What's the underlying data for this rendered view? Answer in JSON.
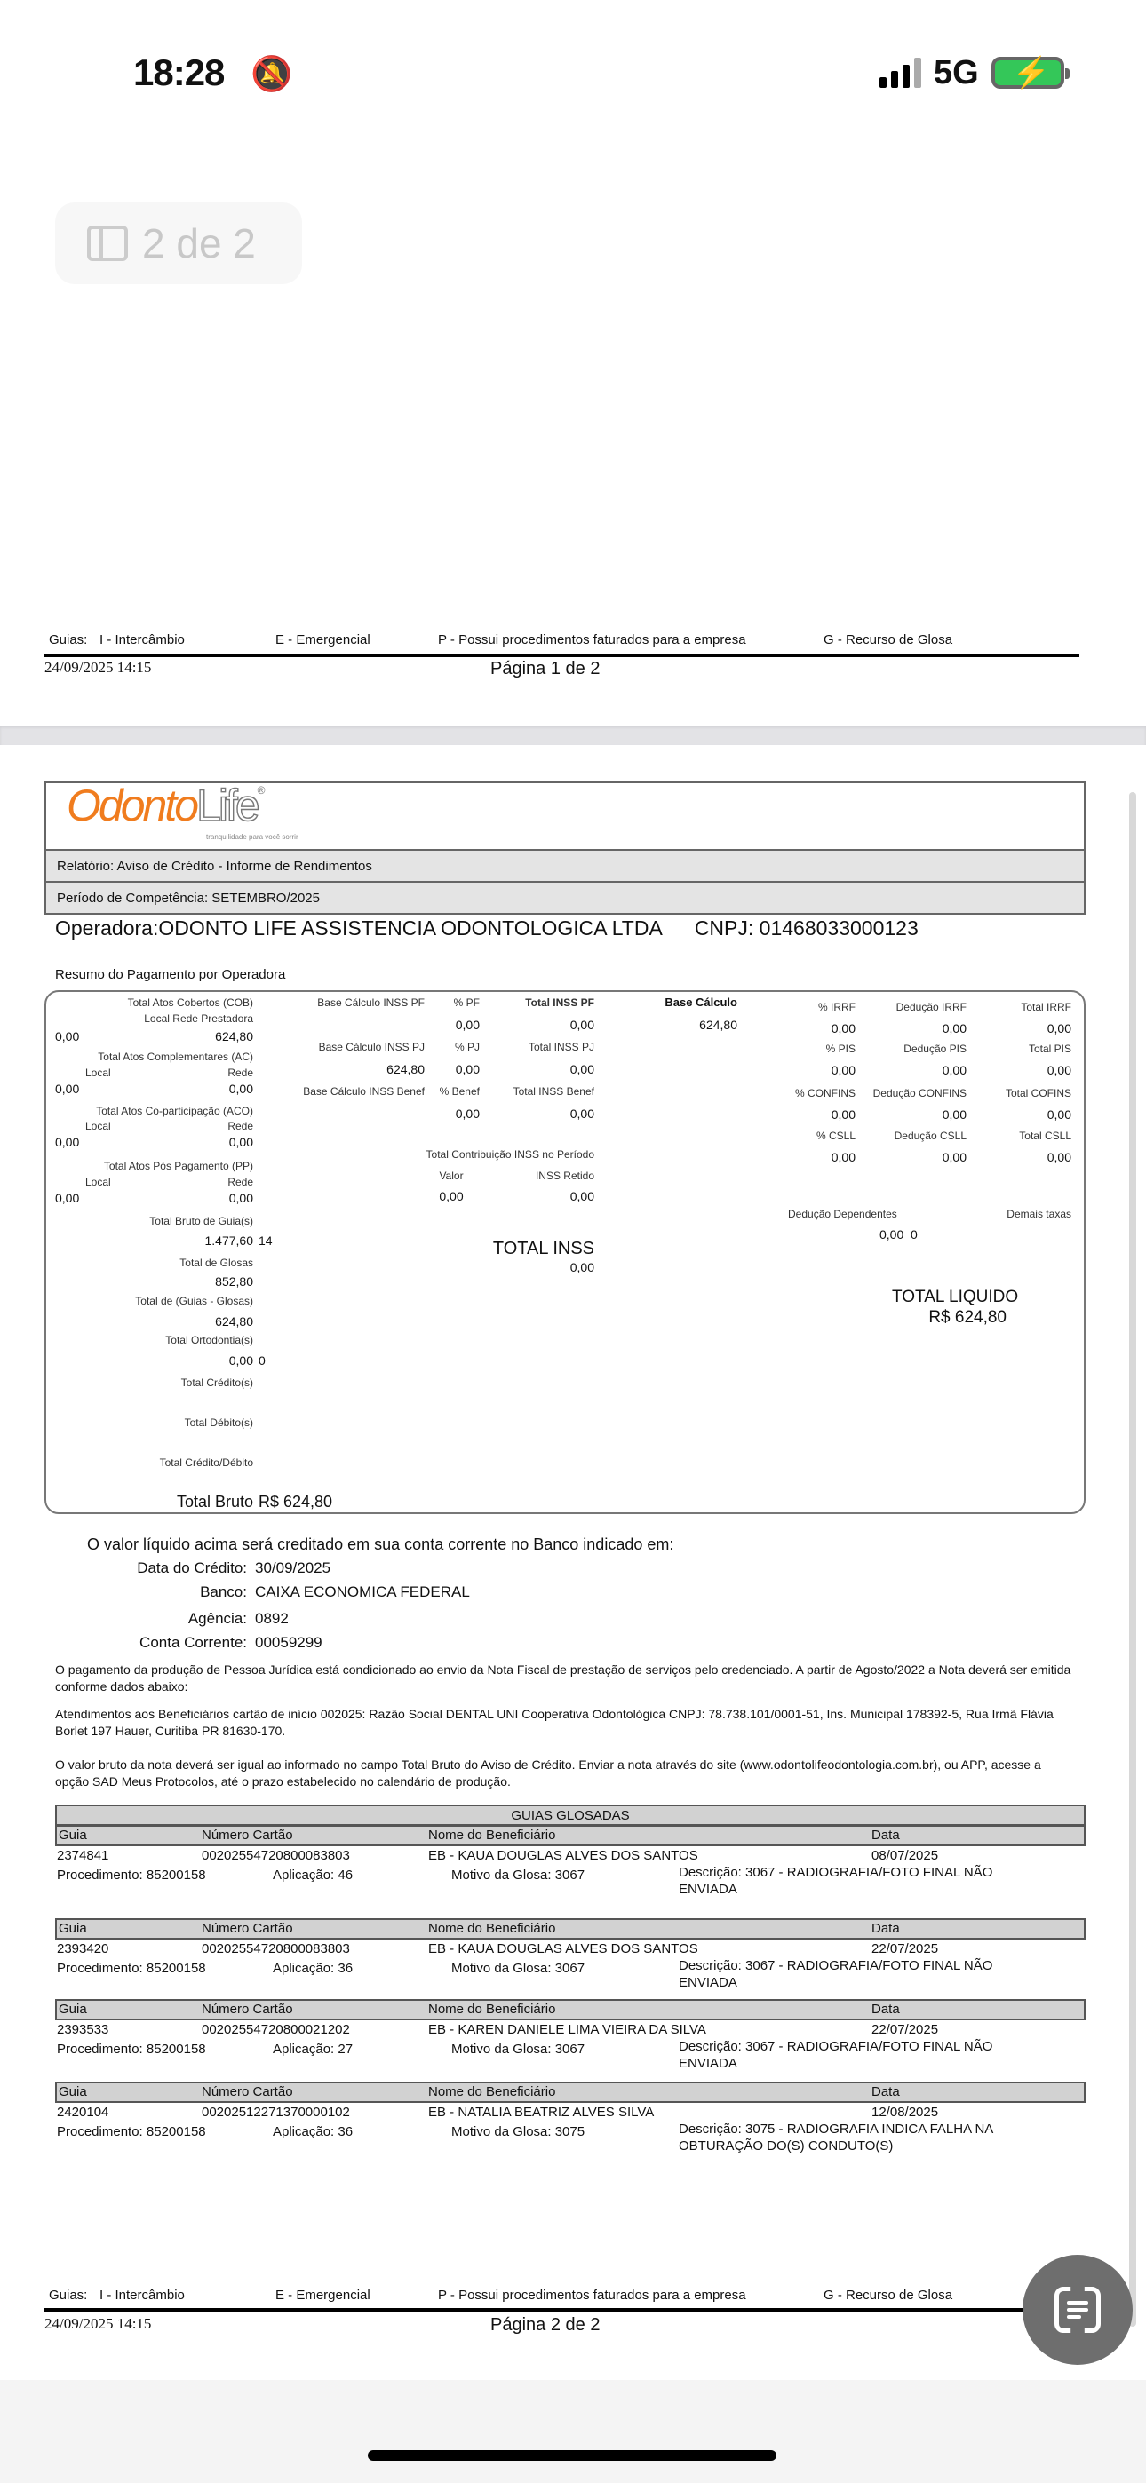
{
  "status": {
    "time": "18:28",
    "network": "5G",
    "silent_icon": "bell-slash-icon"
  },
  "viewer": {
    "page_indicator": "2 de 2",
    "fab_icon": "text-scan-icon"
  },
  "page1_footer": {
    "legend": [
      "Guias:",
      "I - Intercâmbio",
      "E - Emergencial",
      "P - Possui procedimentos faturados para a empresa",
      "G - Recurso de Glosa"
    ],
    "printed": "24/09/2025 14:15",
    "page": "Página 1 de 2"
  },
  "header": {
    "logo_a": "Odonto",
    "logo_b": "Life",
    "logo_mark": "®",
    "tagline": "tranquilidade para você sorrir",
    "relatorio": "Relatório:  Aviso de Crédito - Informe de Rendimentos",
    "periodo": "Período de Competência:  SETEMBRO/2025",
    "operadora": "Operadora:ODONTO LIFE ASSISTENCIA ODONTOLOGICA LTDA",
    "cnpj": "CNPJ: 01468033000123",
    "resumo": "Resumo do Pagamento por Operadora"
  },
  "summary": {
    "cob": {
      "label": "Total Atos Cobertos (COB)",
      "sub": "Local Rede Prestadora",
      "local": "0,00",
      "rede": "624,80"
    },
    "ac": {
      "label": "Total Atos Complementares (AC)",
      "local_label": "Local",
      "rede_label": "Rede",
      "local": "0,00",
      "rede": "0,00"
    },
    "aco": {
      "label": "Total Atos Co-participação (ACO)",
      "local_label": "Local",
      "rede_label": "Rede",
      "local": "0,00",
      "rede": "0,00"
    },
    "pp": {
      "label": "Total Atos Pós Pagamento (PP)",
      "local_label": "Local",
      "rede_label": "Rede",
      "local": "0,00",
      "rede": "0,00"
    },
    "bruto_guias": {
      "label": "Total Bruto de Guia(s)",
      "value": "1.477,60",
      "count": "14"
    },
    "glosas": {
      "label": "Total de Glosas",
      "value": "852,80"
    },
    "guias_glosas": {
      "label": "Total de (Guias - Glosas)",
      "value": "624,80"
    },
    "ortodontia": {
      "label": "Total Ortodontia(s)",
      "value": "0,00",
      "count": "0"
    },
    "credito": {
      "label": "Total Crédito(s)"
    },
    "debito": {
      "label": "Total Débito(s)"
    },
    "cred_deb": {
      "label": "Total Crédito/Débito"
    },
    "total_bruto": {
      "label": "Total Bruto",
      "value": "R$ 624,80"
    },
    "inss": {
      "pf": {
        "base_label": "Base Cálculo INSS PF",
        "pct_label": "% PF",
        "total_label": "Total INSS PF",
        "base": "",
        "pct": "0,00",
        "total": "0,00"
      },
      "pj": {
        "base_label": "Base Cálculo INSS PJ",
        "pct_label": "% PJ",
        "total_label": "Total INSS PJ",
        "base": "624,80",
        "pct": "0,00",
        "total": "0,00"
      },
      "benef": {
        "base_label": "Base Cálculo INSS Benef",
        "pct_label": "% Benef",
        "total_label": "Total INSS Benef",
        "base": "",
        "pct": "0,00",
        "total": "0,00"
      },
      "periodo_label": "Total Contribuição INSS no Período",
      "valor_label": "Valor",
      "retido_label": "INSS Retido",
      "valor": "0,00",
      "retido": "0,00",
      "total_label": "TOTAL INSS",
      "total": "0,00"
    },
    "taxes": {
      "base_label": "Base Cálculo",
      "base": "624,80",
      "rows": [
        {
          "pct_label": "% IRRF",
          "ded_label": "Dedução IRRF",
          "total_label": "Total IRRF",
          "pct": "0,00",
          "ded": "0,00",
          "total": "0,00"
        },
        {
          "pct_label": "% PIS",
          "ded_label": "Dedução PIS",
          "total_label": "Total PIS",
          "pct": "0,00",
          "ded": "0,00",
          "total": "0,00"
        },
        {
          "pct_label": "% CONFINS",
          "ded_label": "Dedução CONFINS",
          "total_label": "Total COFINS",
          "pct": "0,00",
          "ded": "0,00",
          "total": "0,00"
        },
        {
          "pct_label": "% CSLL",
          "ded_label": "Dedução CSLL",
          "total_label": "Total CSLL",
          "pct": "0,00",
          "ded": "0,00",
          "total": "0,00"
        }
      ],
      "dependentes_label": "Dedução Dependentes",
      "dependentes": "0,00  0",
      "demais_label": "Demais taxas",
      "liquido_label": "TOTAL LIQUIDO",
      "liquido": "R$ 624,80"
    }
  },
  "credit": {
    "intro": "O valor líquido acima será creditado em sua conta corrente no Banco indicado em:",
    "rows": [
      {
        "label": "Data do Crédito:",
        "value": "30/09/2025"
      },
      {
        "label": "Banco:",
        "value": "CAIXA ECONOMICA FEDERAL"
      },
      {
        "label": "Agência:",
        "value": "0892"
      },
      {
        "label": "Conta Corrente:",
        "value": "00059299"
      }
    ]
  },
  "notes": [
    "O pagamento da produção de Pessoa Jurídica está condicionado ao envio da Nota Fiscal de prestação de serviços pelo credenciado. A partir de Agosto/2022 a Nota deverá ser emitida conforme dados abaixo:",
    "Atendimentos aos Beneficiários cartão de início 002025: Razão Social DENTAL UNI Cooperativa Odontológica CNPJ: 78.738.101/0001-51, Ins. Municipal 178392-5, Rua Irmã Flávia Borlet 197 Hauer, Curitiba PR 81630-170.",
    "O valor bruto da nota deverá ser igual ao informado no campo Total Bruto do Aviso de Crédito. Enviar a nota através do site (www.odontolifeodontologia.com.br), ou APP, acesse a opção SAD Meus Protocolos, até o prazo estabelecido no calendário de produção."
  ],
  "guias": {
    "title": "GUIAS GLOSADAS",
    "headers": {
      "guia": "Guia",
      "cartao": "Número Cartão",
      "nome": "Nome do Beneficiário",
      "data": "Data"
    },
    "items": [
      {
        "guia": "2374841",
        "cartao": "00202554720800083803",
        "nome": "EB - KAUA DOUGLAS ALVES DOS SANTOS",
        "data": "08/07/2025",
        "procedimento": "Procedimento: 85200158",
        "aplicacao": "Aplicação: 46",
        "motivo": "Motivo da Glosa: 3067",
        "descricao": "Descrição: 3067 - RADIOGRAFIA/FOTO FINAL NÃO ENVIADA"
      },
      {
        "guia": "2393420",
        "cartao": "00202554720800083803",
        "nome": "EB - KAUA DOUGLAS ALVES DOS SANTOS",
        "data": "22/07/2025",
        "procedimento": "Procedimento: 85200158",
        "aplicacao": "Aplicação: 36",
        "motivo": "Motivo da Glosa: 3067",
        "descricao": "Descrição: 3067 - RADIOGRAFIA/FOTO FINAL NÃO ENVIADA"
      },
      {
        "guia": "2393533",
        "cartao": "00202554720800021202",
        "nome": "EB - KAREN DANIELE LIMA VIEIRA DA SILVA",
        "data": "22/07/2025",
        "procedimento": "Procedimento: 85200158",
        "aplicacao": "Aplicação: 27",
        "motivo": "Motivo da Glosa: 3067",
        "descricao": "Descrição: 3067 - RADIOGRAFIA/FOTO FINAL NÃO ENVIADA"
      },
      {
        "guia": "2420104",
        "cartao": "00202512271370000102",
        "nome": "EB - NATALIA BEATRIZ ALVES SILVA",
        "data": "12/08/2025",
        "procedimento": "Procedimento: 85200158",
        "aplicacao": "Aplicação: 36",
        "motivo": "Motivo da Glosa: 3075",
        "descricao": "Descrição: 3075 - RADIOGRAFIA INDICA FALHA NA OBTURAÇÃO DO(S) CONDUTO(S)"
      }
    ]
  },
  "page2_footer": {
    "legend": [
      "Guias:",
      "I - Intercâmbio",
      "E - Emergencial",
      "P - Possui procedimentos faturados para a empresa",
      "G - Recurso de Glosa"
    ],
    "printed": "24/09/2025 14:15",
    "page": "Página 2 de 2"
  },
  "colors": {
    "brand_orange": "#f07c1e",
    "battery_green": "#34c759",
    "table_header": "#d2d2d2"
  }
}
